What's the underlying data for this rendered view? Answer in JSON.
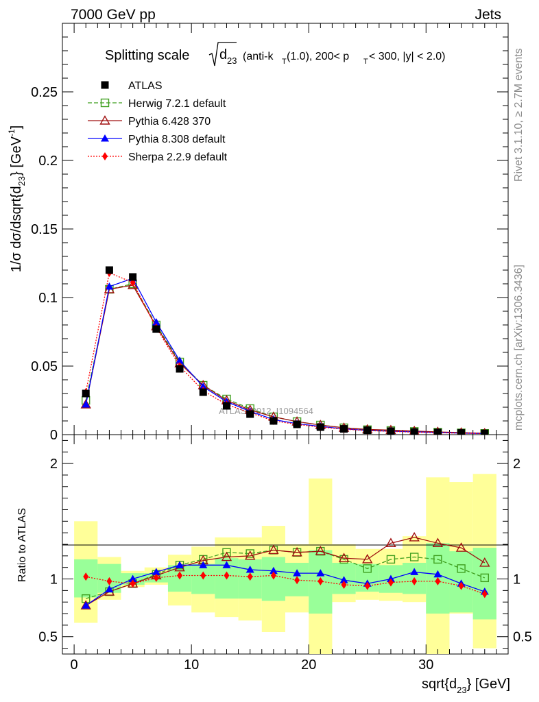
{
  "header": {
    "left": "7000 GeV pp",
    "right": "Jets"
  },
  "side_text": {
    "rivet": "Rivet 3.1.10, ≥ 2.7M events",
    "mcplots": "mcplots.cern.ch [arXiv:1306.3436]"
  },
  "watermark": "ATLAS_2012_I1094564",
  "title": {
    "prefix": "Splitting scale",
    "sym": "d",
    "sym_sub": "23",
    "paren1": "(anti-k",
    "k_sub": "T",
    "paren2": "(1.0), 200< p",
    "p_sub": "T",
    "paren3": " < 300, |y| < 2.0)"
  },
  "upper_ylabel": {
    "a": "1/σ dσ/dsqrt{d",
    "sub": "23",
    "b": "} [GeV",
    "sup": "-1",
    "c": "]"
  },
  "lower_ylabel": "Ratio to ATLAS",
  "xlabel": {
    "a": "sqrt{d",
    "sub": "23",
    "b": "} [GeV]"
  },
  "colors": {
    "atlas": "#000000",
    "herwig": "#3f9f1f",
    "pythia6": "#a01010",
    "pythia8": "#0000ff",
    "sherpa": "#ff0000",
    "band_inner": "#99ff99",
    "band_outer": "#ffff99"
  },
  "chart_data": [
    {
      "type": "line",
      "title": "Splitting scale sqrt(d23) (anti-kT(1.0), 200< pT < 300, |y| < 2.0)",
      "ylabel": "1/σ dσ/dsqrt{d23} [GeV-1]",
      "xlim": [
        -1,
        37
      ],
      "ylim": [
        0,
        0.3
      ],
      "yticks": [
        0,
        0.05,
        0.1,
        0.15,
        0.2,
        0.25
      ],
      "ytick_labels": [
        "0",
        "0.05",
        "0.1",
        "0.15",
        "0.2",
        "0.25"
      ],
      "x": [
        1,
        3,
        5,
        7,
        9,
        11,
        13,
        15,
        17,
        19,
        21,
        23,
        25,
        27,
        29,
        31,
        33,
        35
      ],
      "legend_placement": "top-left",
      "series": [
        {
          "name": "ATLAS",
          "marker": "square-filled",
          "values": [
            0.03,
            0.12,
            0.115,
            0.077,
            0.048,
            0.031,
            0.021,
            0.015,
            0.01,
            0.0075,
            0.0055,
            0.0042,
            0.0032,
            0.0025,
            0.0019,
            0.0015,
            0.0012,
            0.0009
          ]
        },
        {
          "name": "Herwig 7.2.1 default",
          "marker": "square-open",
          "line": "dashed",
          "values": [
            0.025,
            0.106,
            0.11,
            0.08,
            0.053,
            0.036,
            0.026,
            0.019,
            0.013,
            0.0095,
            0.007,
            0.005,
            0.0036,
            0.003,
            0.0023,
            0.0018,
            0.0013,
            0.0009
          ]
        },
        {
          "name": "Pythia 6.428 370",
          "marker": "triangle-open",
          "line": "solid",
          "values": [
            0.022,
            0.106,
            0.109,
            0.079,
            0.052,
            0.036,
            0.025,
            0.018,
            0.013,
            0.0095,
            0.007,
            0.005,
            0.0038,
            0.0033,
            0.0026,
            0.002,
            0.0015,
            0.001
          ]
        },
        {
          "name": "Pythia 8.308 default",
          "marker": "triangle-filled",
          "line": "solid",
          "values": [
            0.022,
            0.108,
            0.114,
            0.082,
            0.054,
            0.035,
            0.024,
            0.017,
            0.011,
            0.008,
            0.006,
            0.0042,
            0.0031,
            0.0025,
            0.002,
            0.0016,
            0.0011,
            0.0008
          ]
        },
        {
          "name": "Sherpa 2.2.9 default",
          "marker": "diamond-filled",
          "line": "dotted",
          "values": [
            0.031,
            0.118,
            0.111,
            0.078,
            0.05,
            0.032,
            0.022,
            0.016,
            0.01,
            0.0075,
            0.0055,
            0.004,
            0.003,
            0.0024,
            0.0018,
            0.0014,
            0.0011,
            0.0008
          ]
        }
      ]
    },
    {
      "type": "line",
      "ylabel": "Ratio to ATLAS",
      "xlabel": "sqrt{d23} [GeV]",
      "xlim": [
        -1,
        37
      ],
      "ylim": [
        0.35,
        2.25
      ],
      "yticks": [
        0.5,
        1,
        2
      ],
      "ytick_labels": [
        "0.5",
        "1",
        "2"
      ],
      "xticks": [
        0,
        10,
        20,
        30
      ],
      "xtick_labels": [
        "0",
        "10",
        "20",
        "30"
      ],
      "x": [
        1,
        3,
        5,
        7,
        9,
        11,
        13,
        15,
        17,
        19,
        21,
        23,
        25,
        27,
        29,
        31,
        33,
        35
      ],
      "bands": {
        "inner_low": [
          0.84,
          0.88,
          0.95,
          0.97,
          0.89,
          0.87,
          0.83,
          0.83,
          0.81,
          0.85,
          0.7,
          0.87,
          0.89,
          0.88,
          0.87,
          0.7,
          0.71,
          0.65
        ],
        "inner_high": [
          1.17,
          1.13,
          1.05,
          1.05,
          1.12,
          1.13,
          1.18,
          1.17,
          1.19,
          1.14,
          1.25,
          1.14,
          1.13,
          1.12,
          1.14,
          1.31,
          1.24,
          1.27
        ],
        "outer_low": [
          0.62,
          0.82,
          0.93,
          0.95,
          0.77,
          0.71,
          0.67,
          0.64,
          0.54,
          0.71,
          0.12,
          0.8,
          0.82,
          0.81,
          0.8,
          0.18,
          0.7,
          0.4
        ],
        "outer_high": [
          1.5,
          1.19,
          1.07,
          1.1,
          1.21,
          1.28,
          1.36,
          1.36,
          1.46,
          1.3,
          1.87,
          1.3,
          1.26,
          1.26,
          1.37,
          1.88,
          1.84,
          1.91
        ]
      },
      "series": [
        {
          "name": "Herwig 7.2.1 default",
          "values": [
            0.83,
            0.89,
            0.96,
            1.04,
            1.12,
            1.17,
            1.23,
            1.22,
            1.25,
            1.23,
            1.24,
            1.17,
            1.09,
            1.17,
            1.19,
            1.17,
            1.09,
            1.01
          ]
        },
        {
          "name": "Pythia 6.428 370",
          "values": [
            0.77,
            0.89,
            0.96,
            1.03,
            1.1,
            1.16,
            1.19,
            1.2,
            1.25,
            1.23,
            1.24,
            1.18,
            1.17,
            1.31,
            1.36,
            1.31,
            1.27,
            1.14
          ]
        },
        {
          "name": "Pythia 8.308 default",
          "values": [
            0.77,
            0.91,
            1.0,
            1.06,
            1.12,
            1.12,
            1.12,
            1.08,
            1.07,
            1.05,
            1.05,
            0.99,
            0.96,
            1.0,
            1.06,
            1.04,
            0.96,
            0.89
          ]
        },
        {
          "name": "Sherpa 2.2.9 default",
          "values": [
            1.02,
            0.98,
            0.96,
            1.01,
            1.03,
            1.03,
            1.03,
            1.02,
            1.03,
            0.99,
            0.98,
            0.95,
            0.94,
            0.97,
            0.98,
            0.98,
            0.94,
            0.87
          ]
        }
      ]
    }
  ]
}
